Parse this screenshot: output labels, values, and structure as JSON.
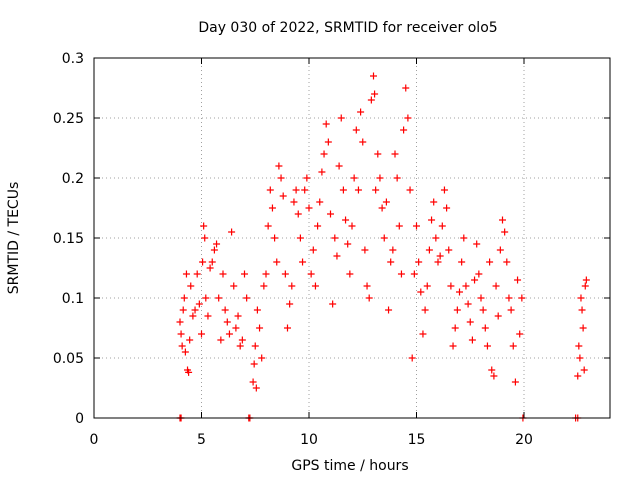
{
  "chart_data": {
    "type": "scatter",
    "title": "Day 030 of 2022, SRMTID for receiver olo5",
    "xlabel": "GPS time / hours",
    "ylabel": "SRMTID / TECUs",
    "xlim": [
      0,
      24
    ],
    "ylim": [
      0,
      0.3
    ],
    "x_ticks": [
      0,
      5,
      10,
      15,
      20
    ],
    "x_tick_labels": [
      "0",
      "5",
      "10",
      "15",
      "20"
    ],
    "y_ticks": [
      0,
      0.05,
      0.1,
      0.15,
      0.2,
      0.25,
      0.3
    ],
    "y_tick_labels": [
      "0",
      "0.05",
      "0.1",
      "0.15",
      "0.2",
      "0.25",
      "0.3"
    ],
    "grid": true,
    "marker": "+",
    "color": "#ff0000",
    "series": [
      {
        "name": "SRMTID",
        "points": [
          [
            4.0,
            0.0
          ],
          [
            4.05,
            0.0
          ],
          [
            7.2,
            0.0
          ],
          [
            7.25,
            0.0
          ],
          [
            19.95,
            0.0
          ],
          [
            22.4,
            0.0
          ],
          [
            22.5,
            0.0
          ],
          [
            4.0,
            0.08
          ],
          [
            4.05,
            0.07
          ],
          [
            4.1,
            0.06
          ],
          [
            4.15,
            0.09
          ],
          [
            4.2,
            0.1
          ],
          [
            4.25,
            0.055
          ],
          [
            4.3,
            0.12
          ],
          [
            4.35,
            0.04
          ],
          [
            4.4,
            0.038
          ],
          [
            4.45,
            0.065
          ],
          [
            4.5,
            0.11
          ],
          [
            4.6,
            0.085
          ],
          [
            4.7,
            0.09
          ],
          [
            4.8,
            0.12
          ],
          [
            4.9,
            0.095
          ],
          [
            5.0,
            0.07
          ],
          [
            5.05,
            0.13
          ],
          [
            5.1,
            0.16
          ],
          [
            5.15,
            0.15
          ],
          [
            5.2,
            0.1
          ],
          [
            5.3,
            0.085
          ],
          [
            5.4,
            0.125
          ],
          [
            5.5,
            0.13
          ],
          [
            5.6,
            0.14
          ],
          [
            5.7,
            0.145
          ],
          [
            5.8,
            0.1
          ],
          [
            5.9,
            0.065
          ],
          [
            6.0,
            0.12
          ],
          [
            6.1,
            0.09
          ],
          [
            6.2,
            0.08
          ],
          [
            6.3,
            0.07
          ],
          [
            6.4,
            0.155
          ],
          [
            6.5,
            0.11
          ],
          [
            6.6,
            0.075
          ],
          [
            6.7,
            0.085
          ],
          [
            6.8,
            0.06
          ],
          [
            6.9,
            0.065
          ],
          [
            7.0,
            0.12
          ],
          [
            7.1,
            0.1
          ],
          [
            7.4,
            0.03
          ],
          [
            7.45,
            0.045
          ],
          [
            7.5,
            0.06
          ],
          [
            7.55,
            0.025
          ],
          [
            7.6,
            0.09
          ],
          [
            7.7,
            0.075
          ],
          [
            7.8,
            0.05
          ],
          [
            7.9,
            0.11
          ],
          [
            8.0,
            0.12
          ],
          [
            8.1,
            0.16
          ],
          [
            8.2,
            0.19
          ],
          [
            8.3,
            0.175
          ],
          [
            8.4,
            0.15
          ],
          [
            8.5,
            0.13
          ],
          [
            8.6,
            0.21
          ],
          [
            8.7,
            0.2
          ],
          [
            8.8,
            0.185
          ],
          [
            8.9,
            0.12
          ],
          [
            9.0,
            0.075
          ],
          [
            9.1,
            0.095
          ],
          [
            9.2,
            0.11
          ],
          [
            9.3,
            0.18
          ],
          [
            9.4,
            0.19
          ],
          [
            9.5,
            0.17
          ],
          [
            9.6,
            0.15
          ],
          [
            9.7,
            0.13
          ],
          [
            9.8,
            0.19
          ],
          [
            9.9,
            0.2
          ],
          [
            10.0,
            0.175
          ],
          [
            10.1,
            0.12
          ],
          [
            10.2,
            0.14
          ],
          [
            10.3,
            0.11
          ],
          [
            10.4,
            0.16
          ],
          [
            10.5,
            0.18
          ],
          [
            10.6,
            0.205
          ],
          [
            10.7,
            0.22
          ],
          [
            10.8,
            0.245
          ],
          [
            10.9,
            0.23
          ],
          [
            11.0,
            0.17
          ],
          [
            11.1,
            0.095
          ],
          [
            11.2,
            0.15
          ],
          [
            11.3,
            0.135
          ],
          [
            11.4,
            0.21
          ],
          [
            11.5,
            0.25
          ],
          [
            11.6,
            0.19
          ],
          [
            11.7,
            0.165
          ],
          [
            11.8,
            0.145
          ],
          [
            11.9,
            0.12
          ],
          [
            12.0,
            0.16
          ],
          [
            12.1,
            0.2
          ],
          [
            12.2,
            0.24
          ],
          [
            12.3,
            0.19
          ],
          [
            12.4,
            0.255
          ],
          [
            12.5,
            0.23
          ],
          [
            12.6,
            0.14
          ],
          [
            12.7,
            0.11
          ],
          [
            12.8,
            0.1
          ],
          [
            12.9,
            0.265
          ],
          [
            13.0,
            0.285
          ],
          [
            13.05,
            0.27
          ],
          [
            13.1,
            0.19
          ],
          [
            13.2,
            0.22
          ],
          [
            13.3,
            0.2
          ],
          [
            13.4,
            0.175
          ],
          [
            13.5,
            0.15
          ],
          [
            13.6,
            0.18
          ],
          [
            13.7,
            0.09
          ],
          [
            13.8,
            0.13
          ],
          [
            13.9,
            0.14
          ],
          [
            14.0,
            0.22
          ],
          [
            14.1,
            0.2
          ],
          [
            14.2,
            0.16
          ],
          [
            14.3,
            0.12
          ],
          [
            14.4,
            0.24
          ],
          [
            14.5,
            0.275
          ],
          [
            14.6,
            0.25
          ],
          [
            14.7,
            0.19
          ],
          [
            14.8,
            0.05
          ],
          [
            14.9,
            0.12
          ],
          [
            15.0,
            0.16
          ],
          [
            15.1,
            0.13
          ],
          [
            15.2,
            0.105
          ],
          [
            15.3,
            0.07
          ],
          [
            15.4,
            0.09
          ],
          [
            15.5,
            0.11
          ],
          [
            15.6,
            0.14
          ],
          [
            15.7,
            0.165
          ],
          [
            15.8,
            0.18
          ],
          [
            15.9,
            0.15
          ],
          [
            16.0,
            0.13
          ],
          [
            16.1,
            0.135
          ],
          [
            16.2,
            0.16
          ],
          [
            16.3,
            0.19
          ],
          [
            16.4,
            0.175
          ],
          [
            16.5,
            0.14
          ],
          [
            16.6,
            0.11
          ],
          [
            16.7,
            0.06
          ],
          [
            16.8,
            0.075
          ],
          [
            16.9,
            0.09
          ],
          [
            17.0,
            0.105
          ],
          [
            17.1,
            0.13
          ],
          [
            17.2,
            0.15
          ],
          [
            17.3,
            0.11
          ],
          [
            17.4,
            0.095
          ],
          [
            17.5,
            0.08
          ],
          [
            17.6,
            0.065
          ],
          [
            17.7,
            0.115
          ],
          [
            17.8,
            0.145
          ],
          [
            17.9,
            0.12
          ],
          [
            18.0,
            0.1
          ],
          [
            18.1,
            0.09
          ],
          [
            18.2,
            0.075
          ],
          [
            18.3,
            0.06
          ],
          [
            18.4,
            0.13
          ],
          [
            18.5,
            0.04
          ],
          [
            18.6,
            0.035
          ],
          [
            18.7,
            0.11
          ],
          [
            18.8,
            0.085
          ],
          [
            18.9,
            0.14
          ],
          [
            19.0,
            0.165
          ],
          [
            19.1,
            0.155
          ],
          [
            19.2,
            0.13
          ],
          [
            19.3,
            0.1
          ],
          [
            19.4,
            0.09
          ],
          [
            19.5,
            0.06
          ],
          [
            19.6,
            0.03
          ],
          [
            19.7,
            0.115
          ],
          [
            19.8,
            0.07
          ],
          [
            19.9,
            0.1
          ],
          [
            22.5,
            0.035
          ],
          [
            22.55,
            0.06
          ],
          [
            22.6,
            0.05
          ],
          [
            22.65,
            0.1
          ],
          [
            22.7,
            0.09
          ],
          [
            22.75,
            0.075
          ],
          [
            22.8,
            0.04
          ],
          [
            22.85,
            0.11
          ],
          [
            22.9,
            0.115
          ]
        ]
      }
    ]
  }
}
